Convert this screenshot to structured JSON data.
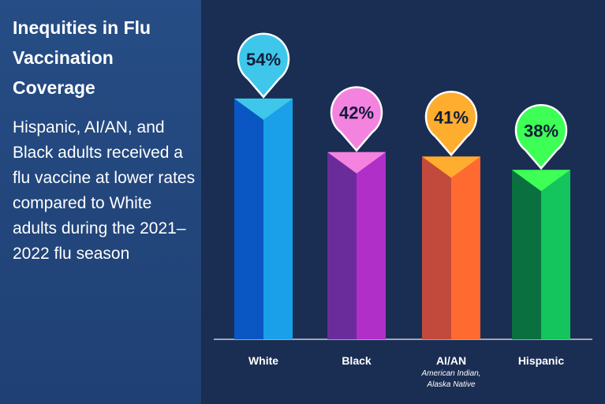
{
  "left_panel": {
    "title": "Inequities in Flu Vaccination Coverage",
    "body": "Hispanic, AI/AN, and Black adults received a flu vaccine at lower rates compared to White adults during the 2021–2022 flu season"
  },
  "chart_data": {
    "type": "bar",
    "categories": [
      "White",
      "Black",
      "AI/AN",
      "Hispanic"
    ],
    "category_notes": [
      "",
      "",
      "American Indian, Alaska Native",
      ""
    ],
    "values": [
      54,
      42,
      41,
      38
    ],
    "value_labels": [
      "54%",
      "42%",
      "41%",
      "38%"
    ],
    "ylim": [
      0,
      100
    ],
    "grid": false,
    "colors": {
      "White": {
        "top": "#3ec7ea",
        "left": "#0a57c4",
        "right": "#1aa0e8"
      },
      "Black": {
        "top": "#f483e0",
        "left": "#6a2c9b",
        "right": "#b02fc9"
      },
      "AI/AN": {
        "top": "#ffad2e",
        "left": "#c24a3d",
        "right": "#ff6a30"
      },
      "Hispanic": {
        "top": "#3dff55",
        "left": "#0b7040",
        "right": "#14c45c"
      }
    }
  },
  "colors": {
    "background": "#1a2d52",
    "left_panel": "#234a80",
    "baseline": "#c8cfdc"
  }
}
